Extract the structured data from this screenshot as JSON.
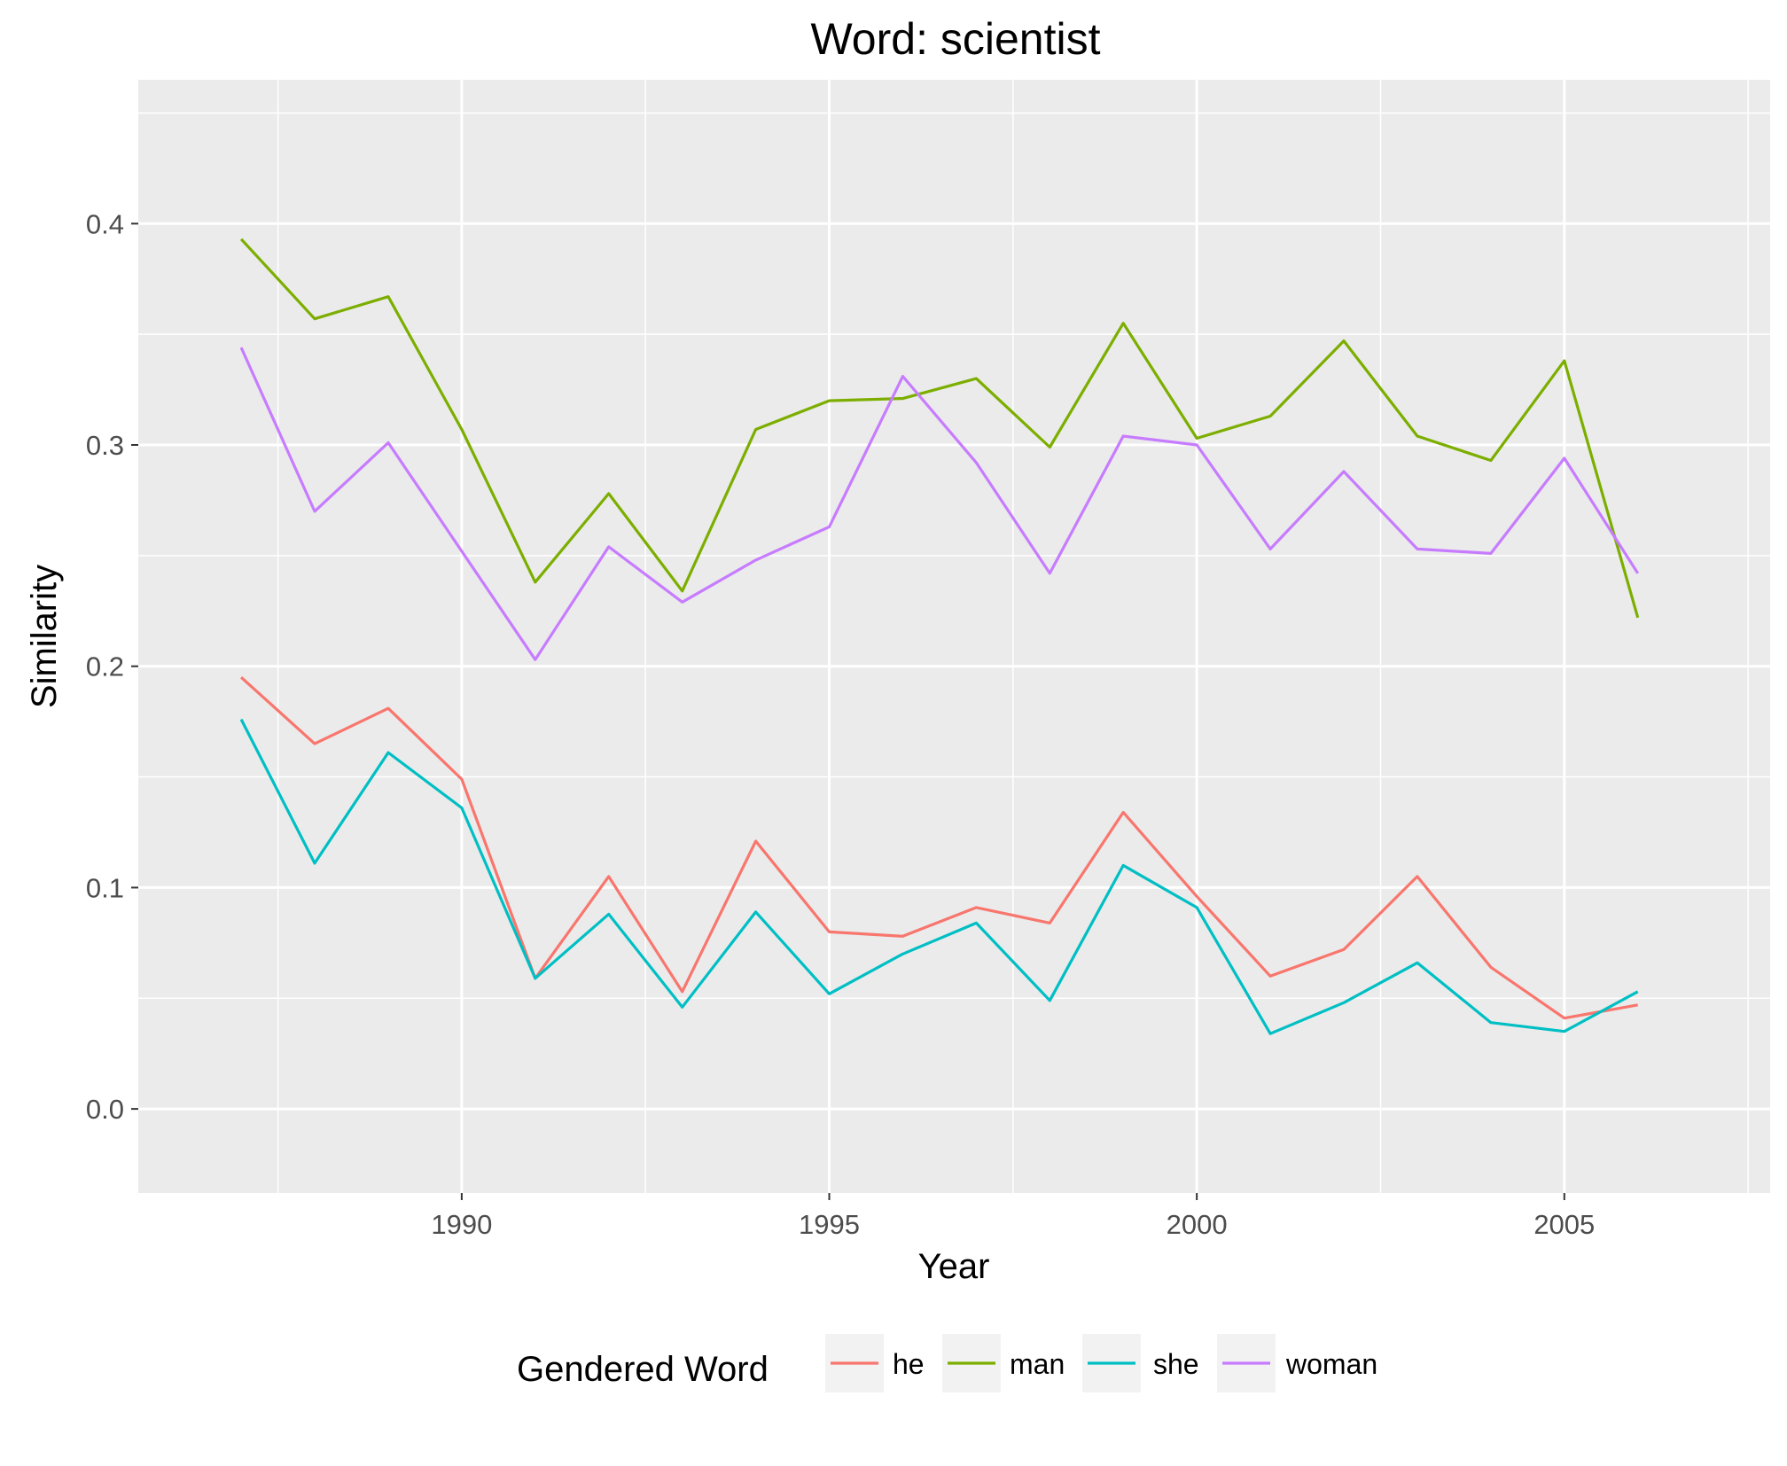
{
  "chart_data": {
    "type": "line",
    "title": "Word: scientist",
    "xlabel": "Year",
    "ylabel": "Similarity",
    "x": [
      1987,
      1988,
      1989,
      1990,
      1991,
      1992,
      1993,
      1994,
      1995,
      1996,
      1997,
      1998,
      1999,
      2000,
      2001,
      2002,
      2003,
      2004,
      2005,
      2006
    ],
    "xlim": [
      1985.6,
      2007.8
    ],
    "ylim": [
      -0.038,
      0.465
    ],
    "x_ticks": [
      1990,
      1995,
      2000,
      2005
    ],
    "x_tick_labels": [
      "1990",
      "1995",
      "2000",
      "2005"
    ],
    "y_ticks": [
      0.0,
      0.1,
      0.2,
      0.3,
      0.4
    ],
    "y_tick_labels": [
      "0.0",
      "0.1",
      "0.2",
      "0.3",
      "0.4"
    ],
    "grid": true,
    "legend": {
      "title": "Gendered Word",
      "position": "bottom"
    },
    "series": [
      {
        "name": "he",
        "color": "#F8766D",
        "values": [
          0.195,
          0.165,
          0.181,
          0.149,
          0.059,
          0.105,
          0.053,
          0.121,
          0.08,
          0.078,
          0.091,
          0.084,
          0.134,
          0.096,
          0.06,
          0.072,
          0.105,
          0.064,
          0.041,
          0.047
        ]
      },
      {
        "name": "man",
        "color": "#7CAE00",
        "values": [
          0.393,
          0.357,
          0.367,
          0.307,
          0.238,
          0.278,
          0.234,
          0.307,
          0.32,
          0.321,
          0.33,
          0.299,
          0.355,
          0.303,
          0.313,
          0.347,
          0.304,
          0.293,
          0.338,
          0.222
        ]
      },
      {
        "name": "she",
        "color": "#00BFC4",
        "values": [
          0.176,
          0.111,
          0.161,
          0.136,
          0.059,
          0.088,
          0.046,
          0.089,
          0.052,
          0.07,
          0.084,
          0.049,
          0.11,
          0.091,
          0.034,
          0.048,
          0.066,
          0.039,
          0.035,
          0.053
        ]
      },
      {
        "name": "woman",
        "color": "#C77CFF",
        "values": [
          0.344,
          0.27,
          0.301,
          0.252,
          0.203,
          0.254,
          0.229,
          0.248,
          0.263,
          0.331,
          0.292,
          0.242,
          0.304,
          0.3,
          0.253,
          0.288,
          0.253,
          0.251,
          0.294,
          0.242
        ]
      }
    ]
  }
}
